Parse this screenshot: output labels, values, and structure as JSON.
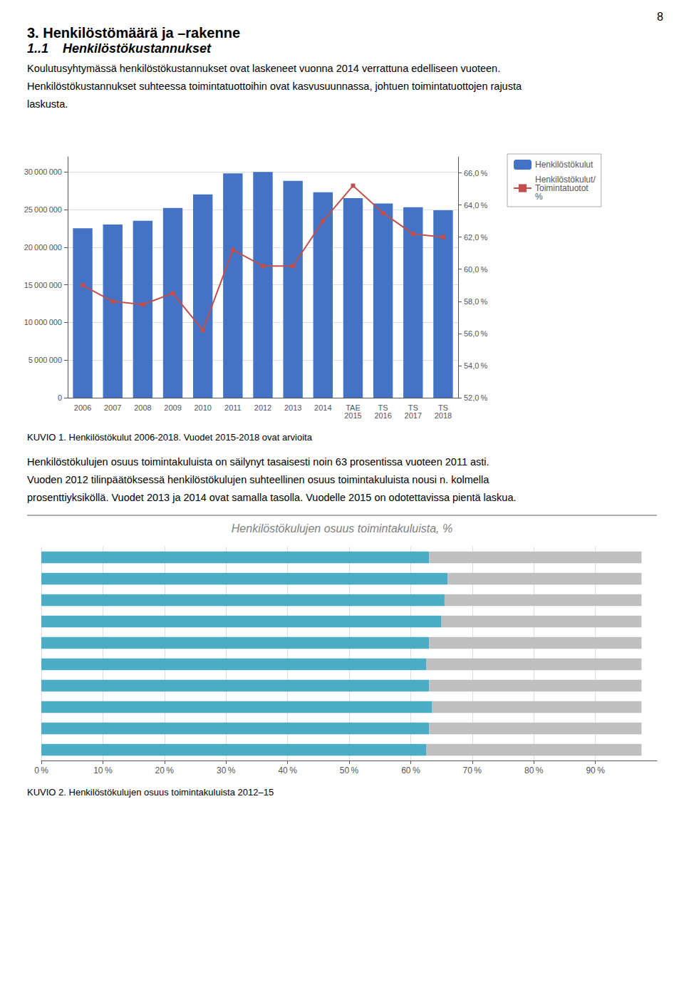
{
  "page_number": "8",
  "section_title": "3. Henkilöstömäärä ja –rakenne",
  "subsection_title": "1..1    Henkilöstökustannukset",
  "paragraphs": [
    [
      "Koulutusyhtymässä henkilöstökustannukset ovat laskeneet vuonna 2014 verrattuna edelliseen vuoteen.",
      "Henkilöstökustannukset suhteessa toimintatuottoihin ovat kasvusuunnassa, johtuen toimintatuottojen rajusta",
      "laskusta."
    ],
    [
      "Henkilöstökulujen osuus toimintakuluista on säilynyt tasaisesti noin 63 prosentissa vuoteen 2011 asti.",
      "Vuoden 2012 tilinpäätöksessä henkilöstökulujen suhteellinen osuus toimintakuluista nousi n. kolmella",
      "prosenttiyksiköllä. Vuodet 2013 ja 2014 ovat samalla tasolla. Vuodelle 2015 on odotettavissa pientä laskua."
    ]
  ],
  "chart_data": [
    {
      "type": "bar",
      "caption": "KUVIO 1. Henkilöstökulut 2006-2018. Vuodet 2015-2018 ovat arvioita",
      "categories": [
        "2006",
        "2007",
        "2008",
        "2009",
        "2010",
        "2011",
        "2012",
        "2013",
        "2014",
        "TAE\n2015",
        "TS\n2016",
        "TS\n2017",
        "TS\n2018"
      ],
      "series": [
        {
          "name": "Henkilöstökulut",
          "type": "bar",
          "color": "#4472C4",
          "values": [
            22500000,
            23000000,
            23500000,
            25200000,
            27000000,
            29800000,
            30000000,
            28800000,
            27300000,
            26500000,
            25800000,
            25300000,
            24900000
          ]
        },
        {
          "name": "Henkilöstökulut/\nToimintatuotot\n%",
          "type": "line",
          "marker": "square",
          "color": "#C0504D",
          "axis": "y2",
          "values": [
            59.0,
            58.0,
            57.8,
            58.5,
            56.2,
            61.2,
            60.2,
            60.2,
            63.0,
            65.2,
            63.5,
            62.2,
            62.0
          ]
        }
      ],
      "ylim": [
        0,
        32000000
      ],
      "yticks": [
        0,
        {
          "value": 5000000,
          "label": "5 000 000"
        },
        {
          "value": 10000000,
          "label": "10 000 000"
        },
        {
          "value": 15000000,
          "label": "15 000 000"
        },
        {
          "value": 20000000,
          "label": "20 000 000"
        },
        {
          "value": 25000000,
          "label": "25 000 000"
        },
        {
          "value": 30000000,
          "label": "30 000 000"
        }
      ],
      "y2lim": [
        52.0,
        67.0
      ],
      "y2ticks": [
        {
          "value": 52.0,
          "label": "52,0 %"
        },
        {
          "value": 54.0,
          "label": "54,0 %"
        },
        {
          "value": 56.0,
          "label": "56,0 %"
        },
        {
          "value": 58.0,
          "label": "58,0 %"
        },
        {
          "value": 60.0,
          "label": "60,0 %"
        },
        {
          "value": 62.0,
          "label": "62,0 %"
        },
        {
          "value": 64.0,
          "label": "64,0 %"
        },
        {
          "value": 66.0,
          "label": "66,0 %"
        }
      ],
      "grid": true,
      "legend": "upper right"
    },
    {
      "type": "bar",
      "title": "Henkilöstökulujen osuus toimintakuluista, %",
      "caption": "KUVIO 2. Henkilöstökulujen osuus toimintakuluista 2012–15",
      "orientation": "horizontal",
      "stacked": true,
      "categories": [
        null,
        null,
        null,
        null,
        null,
        null,
        null,
        null,
        null,
        null
      ],
      "series": [
        {
          "color": "#4BACC6",
          "values": [
            63.0,
            66.0,
            65.5,
            65.0,
            63.0,
            62.5,
            63.0,
            63.5,
            63.0,
            62.5
          ]
        },
        {
          "color": "#BFBFBF",
          "values": [
            34.5,
            31.5,
            32.0,
            32.5,
            34.5,
            35.0,
            34.5,
            34.0,
            34.5,
            35.0
          ]
        }
      ],
      "xlim": [
        0,
        100
      ],
      "xticks": [
        {
          "value": 0,
          "label": "0 %"
        },
        {
          "value": 10,
          "label": "10 %"
        },
        {
          "value": 20,
          "label": "20 %"
        },
        {
          "value": 30,
          "label": "30 %"
        },
        {
          "value": 40,
          "label": "40 %"
        },
        {
          "value": 50,
          "label": "50 %"
        },
        {
          "value": 60,
          "label": "60 %"
        },
        {
          "value": 70,
          "label": "70 %"
        },
        {
          "value": 80,
          "label": "80 %"
        },
        {
          "value": 90,
          "label": "90 %"
        }
      ],
      "grid": true,
      "tick_labels": "x"
    }
  ]
}
